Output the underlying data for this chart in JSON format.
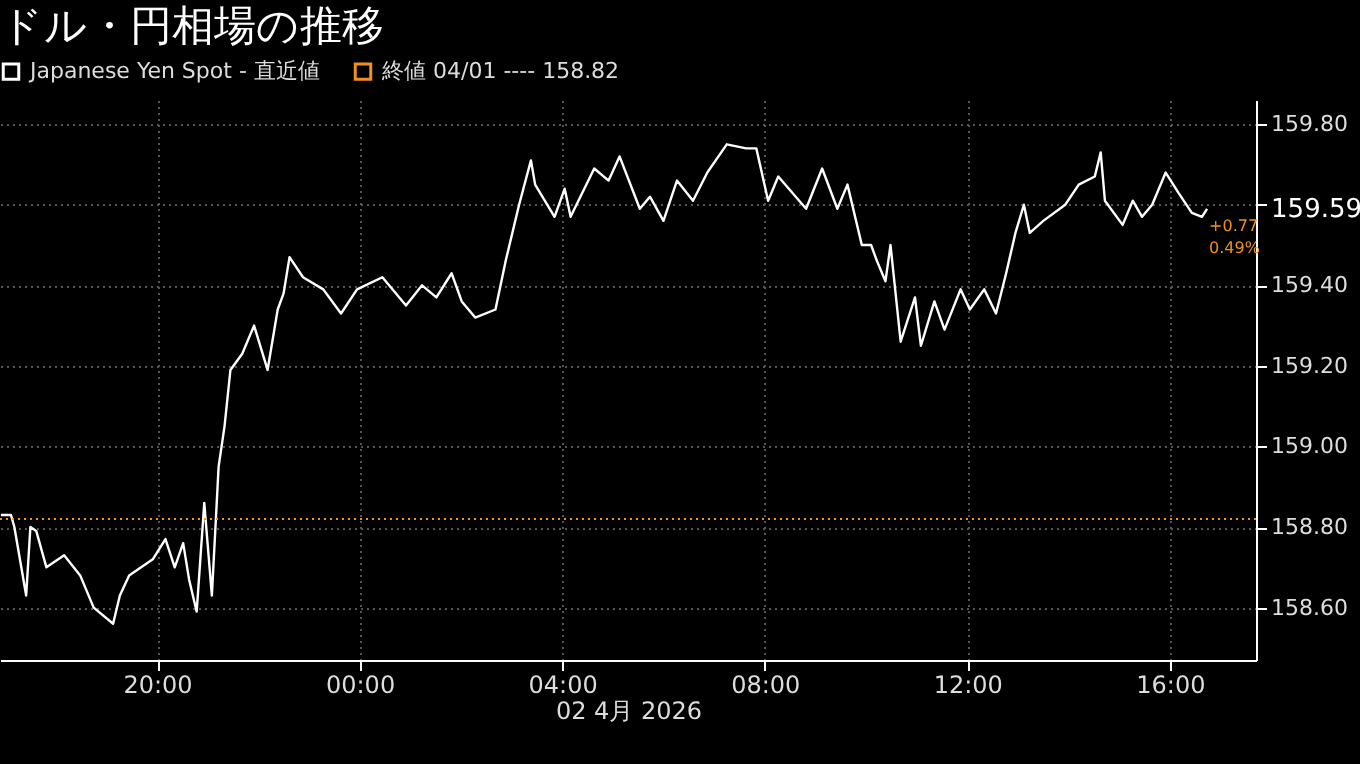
{
  "chart_data": {
    "type": "line",
    "title": "ドル・円相場の推移",
    "xlabel": "02 4月 2026",
    "x": [
      "2026-04-01T16:55",
      "2026-04-01T17:07",
      "2026-04-01T17:11",
      "2026-04-01T17:25",
      "2026-04-01T17:30",
      "2026-04-01T17:37",
      "2026-04-01T17:49",
      "2026-04-01T18:10",
      "2026-04-01T18:29",
      "2026-04-01T18:45",
      "2026-04-01T19:08",
      "2026-04-01T19:16",
      "2026-04-01T19:27",
      "2026-04-01T19:55",
      "2026-04-01T20:10",
      "2026-04-01T20:21",
      "2026-04-01T20:31",
      "2026-04-01T20:38",
      "2026-04-01T20:47",
      "2026-04-01T20:56",
      "2026-04-01T21:05",
      "2026-04-01T21:13",
      "2026-04-01T21:20",
      "2026-04-01T21:27",
      "2026-04-01T21:41",
      "2026-04-01T21:55",
      "2026-04-01T22:11",
      "2026-04-01T22:23",
      "2026-04-01T22:30",
      "2026-04-01T22:37",
      "2026-04-01T22:53",
      "2026-04-01T23:17",
      "2026-04-01T23:38",
      "2026-04-01T23:57",
      "2026-04-02T00:27",
      "2026-04-02T00:55",
      "2026-04-02T01:14",
      "2026-04-02T01:31",
      "2026-04-02T01:49",
      "2026-04-02T02:01",
      "2026-04-02T02:17",
      "2026-04-02T02:41",
      "2026-04-02T02:53",
      "2026-04-02T03:09",
      "2026-04-02T03:23",
      "2026-04-02T03:28",
      "2026-04-02T03:51",
      "2026-04-02T04:03",
      "2026-04-02T04:10",
      "2026-04-02T04:38",
      "2026-04-02T04:55",
      "2026-04-02T05:08",
      "2026-04-02T05:32",
      "2026-04-02T05:44",
      "2026-04-02T06:00",
      "2026-04-02T06:16",
      "2026-04-02T06:35",
      "2026-04-02T06:52",
      "2026-04-02T07:15",
      "2026-04-02T07:38",
      "2026-04-02T07:50",
      "2026-04-02T08:04",
      "2026-04-02T08:16",
      "2026-04-02T08:49",
      "2026-04-02T09:08",
      "2026-04-02T09:26",
      "2026-04-02T09:38",
      "2026-04-02T09:55",
      "2026-04-02T10:06",
      "2026-04-02T10:13",
      "2026-04-02T10:23",
      "2026-04-02T10:29",
      "2026-04-02T10:41",
      "2026-04-02T10:58",
      "2026-04-02T11:05",
      "2026-04-02T11:21",
      "2026-04-02T11:33",
      "2026-04-02T11:52",
      "2026-04-02T12:03",
      "2026-04-02T12:20",
      "2026-04-02T12:34",
      "2026-04-02T12:46",
      "2026-04-02T12:57",
      "2026-04-02T13:07",
      "2026-04-02T13:14",
      "2026-04-02T13:30",
      "2026-04-02T13:56",
      "2026-04-02T14:12",
      "2026-04-02T14:31",
      "2026-04-02T14:38",
      "2026-04-02T14:43",
      "2026-04-02T15:04",
      "2026-04-02T15:16",
      "2026-04-02T15:27",
      "2026-04-02T15:39",
      "2026-04-02T15:55",
      "2026-04-02T16:10",
      "2026-04-02T16:26",
      "2026-04-02T16:38",
      "2026-04-02T16:44"
    ],
    "series": [
      {
        "name": "Japanese Yen Spot - 直近値",
        "color": "#ffffff",
        "values": [
          158.83,
          158.83,
          158.8,
          158.63,
          158.8,
          158.79,
          158.7,
          158.73,
          158.68,
          158.6,
          158.56,
          158.63,
          158.68,
          158.72,
          158.77,
          158.7,
          158.76,
          158.67,
          158.59,
          158.86,
          158.63,
          158.95,
          159.05,
          159.19,
          159.23,
          159.3,
          159.19,
          159.34,
          159.38,
          159.47,
          159.42,
          159.39,
          159.33,
          159.39,
          159.42,
          159.35,
          159.4,
          159.37,
          159.43,
          159.36,
          159.32,
          159.34,
          159.46,
          159.6,
          159.71,
          159.65,
          159.57,
          159.64,
          159.57,
          159.69,
          159.66,
          159.72,
          159.59,
          159.62,
          159.56,
          159.66,
          159.61,
          159.68,
          159.75,
          159.74,
          159.74,
          159.61,
          159.67,
          159.59,
          159.69,
          159.59,
          159.65,
          159.5,
          159.5,
          159.46,
          159.41,
          159.5,
          159.26,
          159.37,
          159.25,
          159.36,
          159.29,
          159.39,
          159.34,
          159.39,
          159.33,
          159.43,
          159.53,
          159.6,
          159.53,
          159.56,
          159.6,
          159.65,
          159.67,
          159.73,
          159.61,
          159.55,
          159.61,
          159.57,
          159.6,
          159.68,
          159.63,
          159.58,
          159.57,
          159.59
        ]
      }
    ],
    "xlim": [
      "2026-04-01T16:54",
      "2026-04-02T17:42"
    ],
    "xticks": [
      {
        "value": "2026-04-01T20:00",
        "label": "20:00"
      },
      {
        "value": "2026-04-02T00:00",
        "label": "00:00"
      },
      {
        "value": "2026-04-02T04:00",
        "label": "04:00"
      },
      {
        "value": "2026-04-02T08:00",
        "label": "08:00"
      },
      {
        "value": "2026-04-02T12:00",
        "label": "12:00"
      },
      {
        "value": "2026-04-02T16:00",
        "label": "16:00"
      }
    ],
    "ylim": [
      158.47,
      159.86
    ],
    "yticks": [
      {
        "value": 158.6,
        "label": "158.60"
      },
      {
        "value": 158.8,
        "label": "158.80"
      },
      {
        "value": 159.0,
        "label": "159.00"
      },
      {
        "value": 159.2,
        "label": "159.20"
      },
      {
        "value": 159.4,
        "label": "159.40"
      },
      {
        "value": 159.6,
        "label": null
      },
      {
        "value": 159.8,
        "label": "159.80"
      }
    ],
    "grid": true,
    "legend": "top left",
    "ref_lines": [
      {
        "axis": "y",
        "value": 158.82,
        "label": "終値 04/01 ---- 158.82",
        "color": "#f0901e",
        "line_style": "dotted"
      }
    ],
    "annotations": [
      {
        "text": "159.59",
        "x": "2026-04-02T16:44",
        "y": 159.59
      },
      {
        "text": "+0.77",
        "x": "2026-04-02T16:44",
        "y": 159.59
      },
      {
        "text": "0.49%",
        "x": "2026-04-02T16:44",
        "y": 159.59
      }
    ]
  }
}
